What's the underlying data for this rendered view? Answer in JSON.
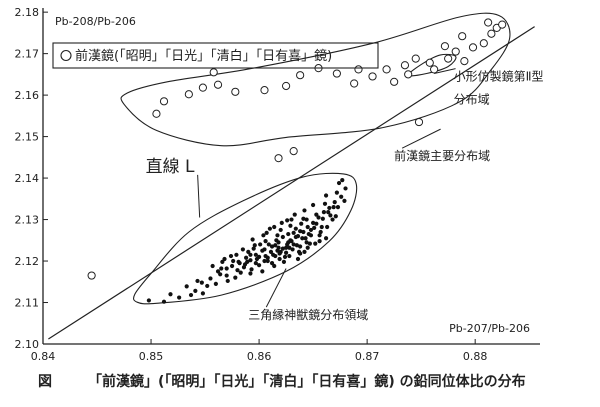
{
  "caption": {
    "figure_label": "図",
    "text": "「前漢鏡」(「昭明」「日光」「清白」「日有喜」鏡) の鉛同位体比の分布"
  },
  "chart_data": {
    "type": "scatter",
    "ylabel": "Pb-208/Pb-206",
    "xlabel": "Pb-207/Pb-206",
    "xlim": [
      0.84,
      0.886
    ],
    "ylim": [
      2.1,
      2.181
    ],
    "xticks": [
      0.84,
      0.85,
      0.86,
      0.87,
      0.88
    ],
    "xtick_labels": [
      "0.84",
      "0.85",
      "0.86",
      "0.87",
      "0.88"
    ],
    "yticks": [
      2.1,
      2.11,
      2.12,
      2.13,
      2.14,
      2.15,
      2.16,
      2.17,
      2.18
    ],
    "ytick_labels": [
      "2.10",
      "2.11",
      "2.12",
      "2.13",
      "2.14",
      "2.15",
      "2.16",
      "2.17",
      "2.18"
    ],
    "grid": false,
    "legend": {
      "marker": "open-circle",
      "label": "前漢鏡(「昭明」「日光」「清白」「日有喜」鏡)",
      "position": "top-left"
    },
    "line_L": {
      "label": "直線 L",
      "points": [
        [
          0.8405,
          2.1012
        ],
        [
          0.8855,
          2.1765
        ]
      ]
    },
    "regions": [
      {
        "label": "前漢鏡主要分布域",
        "outline": [
          [
            0.8475,
            2.1578
          ],
          [
            0.8505,
            2.1515
          ],
          [
            0.8565,
            2.1478
          ],
          [
            0.8625,
            2.1498
          ],
          [
            0.8715,
            2.1522
          ],
          [
            0.8785,
            2.1583
          ],
          [
            0.8815,
            2.1662
          ],
          [
            0.8832,
            2.1738
          ],
          [
            0.8822,
            2.1792
          ],
          [
            0.8785,
            2.1788
          ],
          [
            0.8705,
            2.1725
          ],
          [
            0.8595,
            2.1665
          ],
          [
            0.8515,
            2.1632
          ],
          [
            0.8478,
            2.1605
          ]
        ]
      },
      {
        "label": "小形仿製鏡第Ⅱ型分布域",
        "outline": [
          [
            0.8738,
            2.1648
          ],
          [
            0.8752,
            2.1677
          ],
          [
            0.8768,
            2.1697
          ],
          [
            0.8782,
            2.1693
          ],
          [
            0.8775,
            2.1669
          ],
          [
            0.8755,
            2.1652
          ]
        ]
      },
      {
        "label": "三角縁神獣鏡分布領域",
        "outline": [
          [
            0.8487,
            2.1101
          ],
          [
            0.8505,
            2.1098
          ],
          [
            0.8565,
            2.1118
          ],
          [
            0.8625,
            2.1175
          ],
          [
            0.8665,
            2.1248
          ],
          [
            0.8685,
            2.1322
          ],
          [
            0.869,
            2.1385
          ],
          [
            0.8678,
            2.141
          ],
          [
            0.864,
            2.1402
          ],
          [
            0.8585,
            2.1345
          ],
          [
            0.8535,
            2.127
          ],
          [
            0.85,
            2.117
          ],
          [
            0.8485,
            2.112
          ]
        ]
      }
    ],
    "annotations": [
      {
        "text": "小形仿製鏡第Ⅱ型",
        "anchor": [
          0.878,
          2.1635
        ]
      },
      {
        "text": "分布域",
        "anchor": [
          0.878,
          2.158
        ]
      },
      {
        "text": "前漢鏡主要分布域",
        "anchor": [
          0.8725,
          2.1443
        ]
      },
      {
        "text": "三角縁神獣鏡分布領域",
        "anchor": [
          0.859,
          2.106
        ]
      }
    ],
    "series": [
      {
        "marker": "open-circle",
        "points": [
          [
            0.8445,
            2.1165
          ],
          [
            0.8618,
            2.1448
          ],
          [
            0.8632,
            2.1465
          ],
          [
            0.8505,
            2.1555
          ],
          [
            0.8512,
            2.1585
          ],
          [
            0.8535,
            2.1602
          ],
          [
            0.8548,
            2.1618
          ],
          [
            0.8562,
            2.1625
          ],
          [
            0.8558,
            2.1655
          ],
          [
            0.8578,
            2.1608
          ],
          [
            0.8605,
            2.1612
          ],
          [
            0.8625,
            2.1622
          ],
          [
            0.8638,
            2.1648
          ],
          [
            0.8655,
            2.1665
          ],
          [
            0.8672,
            2.1652
          ],
          [
            0.8688,
            2.1628
          ],
          [
            0.8692,
            2.1662
          ],
          [
            0.8705,
            2.1645
          ],
          [
            0.8718,
            2.1662
          ],
          [
            0.8725,
            2.1632
          ],
          [
            0.8738,
            2.165
          ],
          [
            0.8745,
            2.1688
          ],
          [
            0.8758,
            2.1678
          ],
          [
            0.8762,
            2.1662
          ],
          [
            0.8775,
            2.1688
          ],
          [
            0.8782,
            2.1705
          ],
          [
            0.879,
            2.1682
          ],
          [
            0.8798,
            2.1715
          ],
          [
            0.8808,
            2.1725
          ],
          [
            0.8815,
            2.1748
          ],
          [
            0.882,
            2.1762
          ],
          [
            0.8788,
            2.1742
          ],
          [
            0.8772,
            2.1718
          ],
          [
            0.8735,
            2.1672
          ],
          [
            0.8748,
            2.1535
          ],
          [
            0.8812,
            2.1775
          ],
          [
            0.8825,
            2.177
          ]
        ]
      },
      {
        "marker": "filled-dot",
        "points": [
          [
            0.8498,
            2.1105
          ],
          [
            0.8518,
            2.112
          ],
          [
            0.8533,
            2.1139
          ],
          [
            0.8543,
            2.1152
          ],
          [
            0.8555,
            2.1158
          ],
          [
            0.8562,
            2.1175
          ],
          [
            0.8548,
            2.1122
          ],
          [
            0.857,
            2.1182
          ],
          [
            0.8578,
            2.116
          ],
          [
            0.8582,
            2.1195
          ],
          [
            0.8588,
            2.1208
          ],
          [
            0.8592,
            2.117
          ],
          [
            0.8597,
            2.1215
          ],
          [
            0.86,
            2.119
          ],
          [
            0.8605,
            2.1228
          ],
          [
            0.8608,
            2.12
          ],
          [
            0.8612,
            2.1235
          ],
          [
            0.8615,
            2.1212
          ],
          [
            0.8618,
            2.1245
          ],
          [
            0.862,
            2.1222
          ],
          [
            0.8622,
            2.1258
          ],
          [
            0.8625,
            2.1232
          ],
          [
            0.8628,
            2.1212
          ],
          [
            0.863,
            2.1248
          ],
          [
            0.8632,
            2.1268
          ],
          [
            0.8635,
            2.1238
          ],
          [
            0.8638,
            2.1272
          ],
          [
            0.864,
            2.1255
          ],
          [
            0.8642,
            2.1222
          ],
          [
            0.8645,
            2.1282
          ],
          [
            0.8648,
            2.1262
          ],
          [
            0.865,
            2.1292
          ],
          [
            0.8652,
            2.1242
          ],
          [
            0.8655,
            2.1305
          ],
          [
            0.8658,
            2.1282
          ],
          [
            0.866,
            2.1318
          ],
          [
            0.8662,
            2.1255
          ],
          [
            0.8665,
            2.1328
          ],
          [
            0.8668,
            2.13
          ],
          [
            0.867,
            2.1342
          ],
          [
            0.8672,
            2.1365
          ],
          [
            0.8674,
            2.1388
          ],
          [
            0.8677,
            2.1395
          ],
          [
            0.868,
            2.1375
          ],
          [
            0.8662,
            2.1358
          ],
          [
            0.865,
            2.1335
          ],
          [
            0.8603,
            2.1175
          ],
          [
            0.8614,
            2.1188
          ],
          [
            0.8623,
            2.1198
          ],
          [
            0.8636,
            2.1205
          ],
          [
            0.8644,
            2.1245
          ],
          [
            0.8657,
            2.127
          ],
          [
            0.8629,
            2.1285
          ],
          [
            0.8617,
            2.1262
          ],
          [
            0.8606,
            2.1248
          ],
          [
            0.8596,
            2.1238
          ],
          [
            0.8585,
            2.1228
          ],
          [
            0.8574,
            2.1212
          ],
          [
            0.8566,
            2.1198
          ],
          [
            0.8557,
            2.1188
          ],
          [
            0.861,
            2.1278
          ],
          [
            0.8621,
            2.1292
          ],
          [
            0.8633,
            2.1312
          ],
          [
            0.8641,
            2.1302
          ],
          [
            0.8627,
            2.1265
          ],
          [
            0.8615,
            2.1238
          ],
          [
            0.8603,
            2.1225
          ],
          [
            0.8592,
            2.1215
          ],
          [
            0.8581,
            2.1198
          ],
          [
            0.857,
            2.1165
          ],
          [
            0.856,
            2.1145
          ],
          [
            0.8541,
            2.1128
          ],
          [
            0.8526,
            2.1112
          ],
          [
            0.8512,
            2.1102
          ],
          [
            0.8638,
            2.1235
          ],
          [
            0.8646,
            2.1265
          ],
          [
            0.8653,
            2.129
          ],
          [
            0.8619,
            2.1218
          ],
          [
            0.8608,
            2.1208
          ],
          [
            0.8597,
            2.1195
          ],
          [
            0.8586,
            2.1185
          ],
          [
            0.8627,
            2.1245
          ],
          [
            0.8634,
            2.1258
          ],
          [
            0.8611,
            2.1222
          ],
          [
            0.86,
            2.121
          ],
          [
            0.8589,
            2.1198
          ],
          [
            0.8575,
            2.1188
          ],
          [
            0.862,
            2.1275
          ],
          [
            0.8631,
            2.1228
          ],
          [
            0.8643,
            2.1255
          ],
          [
            0.8659,
            2.1302
          ],
          [
            0.8664,
            2.1318
          ],
          [
            0.8669,
            2.133
          ],
          [
            0.8676,
            2.1355
          ],
          [
            0.8639,
            2.129
          ],
          [
            0.8626,
            2.1298
          ],
          [
            0.8616,
            2.125
          ],
          [
            0.8604,
            2.1262
          ],
          [
            0.8593,
            2.118
          ],
          [
            0.8583,
            2.1172
          ],
          [
            0.8571,
            2.1152
          ],
          [
            0.8552,
            2.114
          ],
          [
            0.8537,
            2.1118
          ],
          [
            0.8612,
            2.1195
          ],
          [
            0.8624,
            2.121
          ],
          [
            0.8637,
            2.1222
          ],
          [
            0.8647,
            2.1242
          ],
          [
            0.8656,
            2.1262
          ],
          [
            0.8663,
            2.1282
          ],
          [
            0.8671,
            2.1308
          ],
          [
            0.8618,
            2.1232
          ],
          [
            0.8629,
            2.125
          ],
          [
            0.8641,
            2.127
          ],
          [
            0.8651,
            2.128
          ],
          [
            0.8601,
            2.124
          ],
          [
            0.859,
            2.1222
          ],
          [
            0.8579,
            2.1215
          ],
          [
            0.8568,
            2.1205
          ],
          [
            0.8634,
            2.1278
          ],
          [
            0.8644,
            2.13
          ],
          [
            0.8622,
            2.123
          ],
          [
            0.8613,
            2.1215
          ],
          [
            0.8605,
            2.12
          ],
          [
            0.8595,
            2.123
          ],
          [
            0.8626,
            2.124
          ],
          [
            0.8636,
            2.126
          ],
          [
            0.8648,
            2.1275
          ],
          [
            0.8609,
            2.124
          ],
          [
            0.8598,
            2.1205
          ],
          [
            0.8587,
            2.1192
          ],
          [
            0.858,
            2.1178
          ],
          [
            0.8564,
            2.1168
          ],
          [
            0.8547,
            2.1148
          ],
          [
            0.8632,
            2.124
          ],
          [
            0.8619,
            2.1205
          ],
          [
            0.8653,
            2.1312
          ],
          [
            0.8661,
            2.1338
          ],
          [
            0.8666,
            2.131
          ],
          [
            0.8673,
            2.133
          ],
          [
            0.8679,
            2.1345
          ],
          [
            0.8642,
            2.1322
          ],
          [
            0.863,
            2.13
          ],
          [
            0.8614,
            2.1282
          ],
          [
            0.8607,
            2.1268
          ],
          [
            0.8594,
            2.1252
          ],
          [
            0.8625,
            2.122
          ],
          [
            0.8645,
            2.1232
          ],
          [
            0.8656,
            2.1248
          ],
          [
            0.8638,
            2.1218
          ],
          [
            0.8628,
            2.1232
          ],
          [
            0.8617,
            2.1225
          ],
          [
            0.8606,
            2.1212
          ],
          [
            0.8592,
            2.1202
          ],
          [
            0.8576,
            2.12
          ],
          [
            0.8565,
            2.1182
          ]
        ]
      }
    ]
  }
}
